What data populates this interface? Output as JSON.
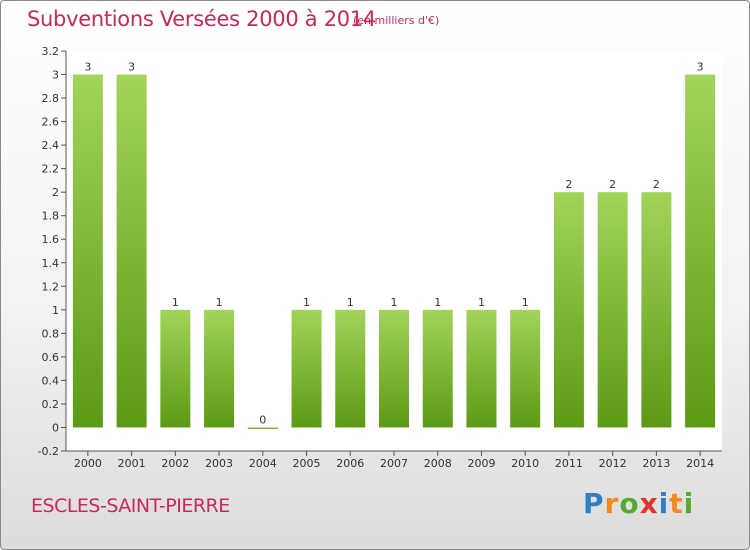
{
  "header": {
    "title": "Subventions Versées 2000 à 2014",
    "subtitle": "(en milliers d'€)"
  },
  "footer": {
    "commune": "ESCLES-SAINT-PIERRE",
    "logo_text": "Proxiti",
    "logo_colors": [
      "#2f7fc6",
      "#f08a1e",
      "#58a832",
      "#e2332b",
      "#2f7fc6",
      "#f08a1e",
      "#58a832"
    ]
  },
  "colors": {
    "title": "#c8285a",
    "bar_top": "#a2d45a",
    "bar_bottom": "#5c9a14"
  },
  "chart_data": {
    "type": "bar",
    "title": "Subventions Versées 2000 à 2014",
    "xlabel": "",
    "ylabel": "",
    "categories": [
      "2000",
      "2001",
      "2002",
      "2003",
      "2004",
      "2005",
      "2006",
      "2007",
      "2008",
      "2009",
      "2010",
      "2011",
      "2012",
      "2013",
      "2014"
    ],
    "values": [
      3,
      3,
      1,
      1,
      0,
      1,
      1,
      1,
      1,
      1,
      1,
      2,
      2,
      2,
      3
    ],
    "data_labels": [
      "3",
      "3",
      "1",
      "1",
      "0",
      "1",
      "1",
      "1",
      "1",
      "1",
      "1",
      "2",
      "2",
      "2",
      "3"
    ],
    "ylim": [
      -0.2,
      3.2
    ],
    "yticks": [
      -0.2,
      0,
      0.2,
      0.4,
      0.6,
      0.8,
      1,
      1.2,
      1.4,
      1.6,
      1.8,
      2,
      2.2,
      2.4,
      2.6,
      2.8,
      3,
      3.2
    ],
    "ytick_labels": [
      "-0.2",
      "0",
      "0.2",
      "0.4",
      "0.6",
      "0.8",
      "1",
      "1.2",
      "1.4",
      "1.6",
      "1.8",
      "2",
      "2.2",
      "2.4",
      "2.6",
      "2.8",
      "3",
      "3.2"
    ],
    "grid": false,
    "legend": "none"
  }
}
